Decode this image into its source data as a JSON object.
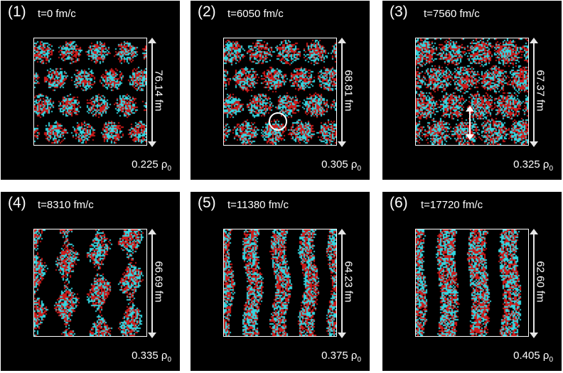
{
  "figure": {
    "panels": [
      {
        "label": "(1)",
        "time": "t=0 fm/c",
        "length": "76.14 fm",
        "density_value": "0.225",
        "density_unit": "ρ",
        "density_sub": "0",
        "pattern": "spheres",
        "marker": "none"
      },
      {
        "label": "(2)",
        "time": "t=6050 fm/c",
        "length": "68.81 fm",
        "density_value": "0.305",
        "density_unit": "ρ",
        "density_sub": "0",
        "pattern": "spheres",
        "marker": "circle"
      },
      {
        "label": "(3)",
        "time": "t=7560 fm/c",
        "length": "67.37 fm",
        "density_value": "0.325",
        "density_unit": "ρ",
        "density_sub": "0",
        "pattern": "spheres-merging",
        "marker": "arrow"
      },
      {
        "label": "(4)",
        "time": "t=8310 fm/c",
        "length": "66.69 fm",
        "density_value": "0.335",
        "density_unit": "ρ",
        "density_sub": "0",
        "pattern": "rods-forming",
        "marker": "none"
      },
      {
        "label": "(5)",
        "time": "t=11380 fm/c",
        "length": "64.23 fm",
        "density_value": "0.375",
        "density_unit": "ρ",
        "density_sub": "0",
        "pattern": "rods",
        "marker": "none"
      },
      {
        "label": "(6)",
        "time": "t=17720 fm/c",
        "length": "62.60 fm",
        "density_value": "0.405",
        "density_unit": "ρ",
        "density_sub": "0",
        "pattern": "slabs",
        "marker": "none"
      }
    ],
    "colors": {
      "background": "#000000",
      "proton": "#cc1a1a",
      "neutron": "#33d6e0",
      "text": "#ffffff"
    }
  }
}
